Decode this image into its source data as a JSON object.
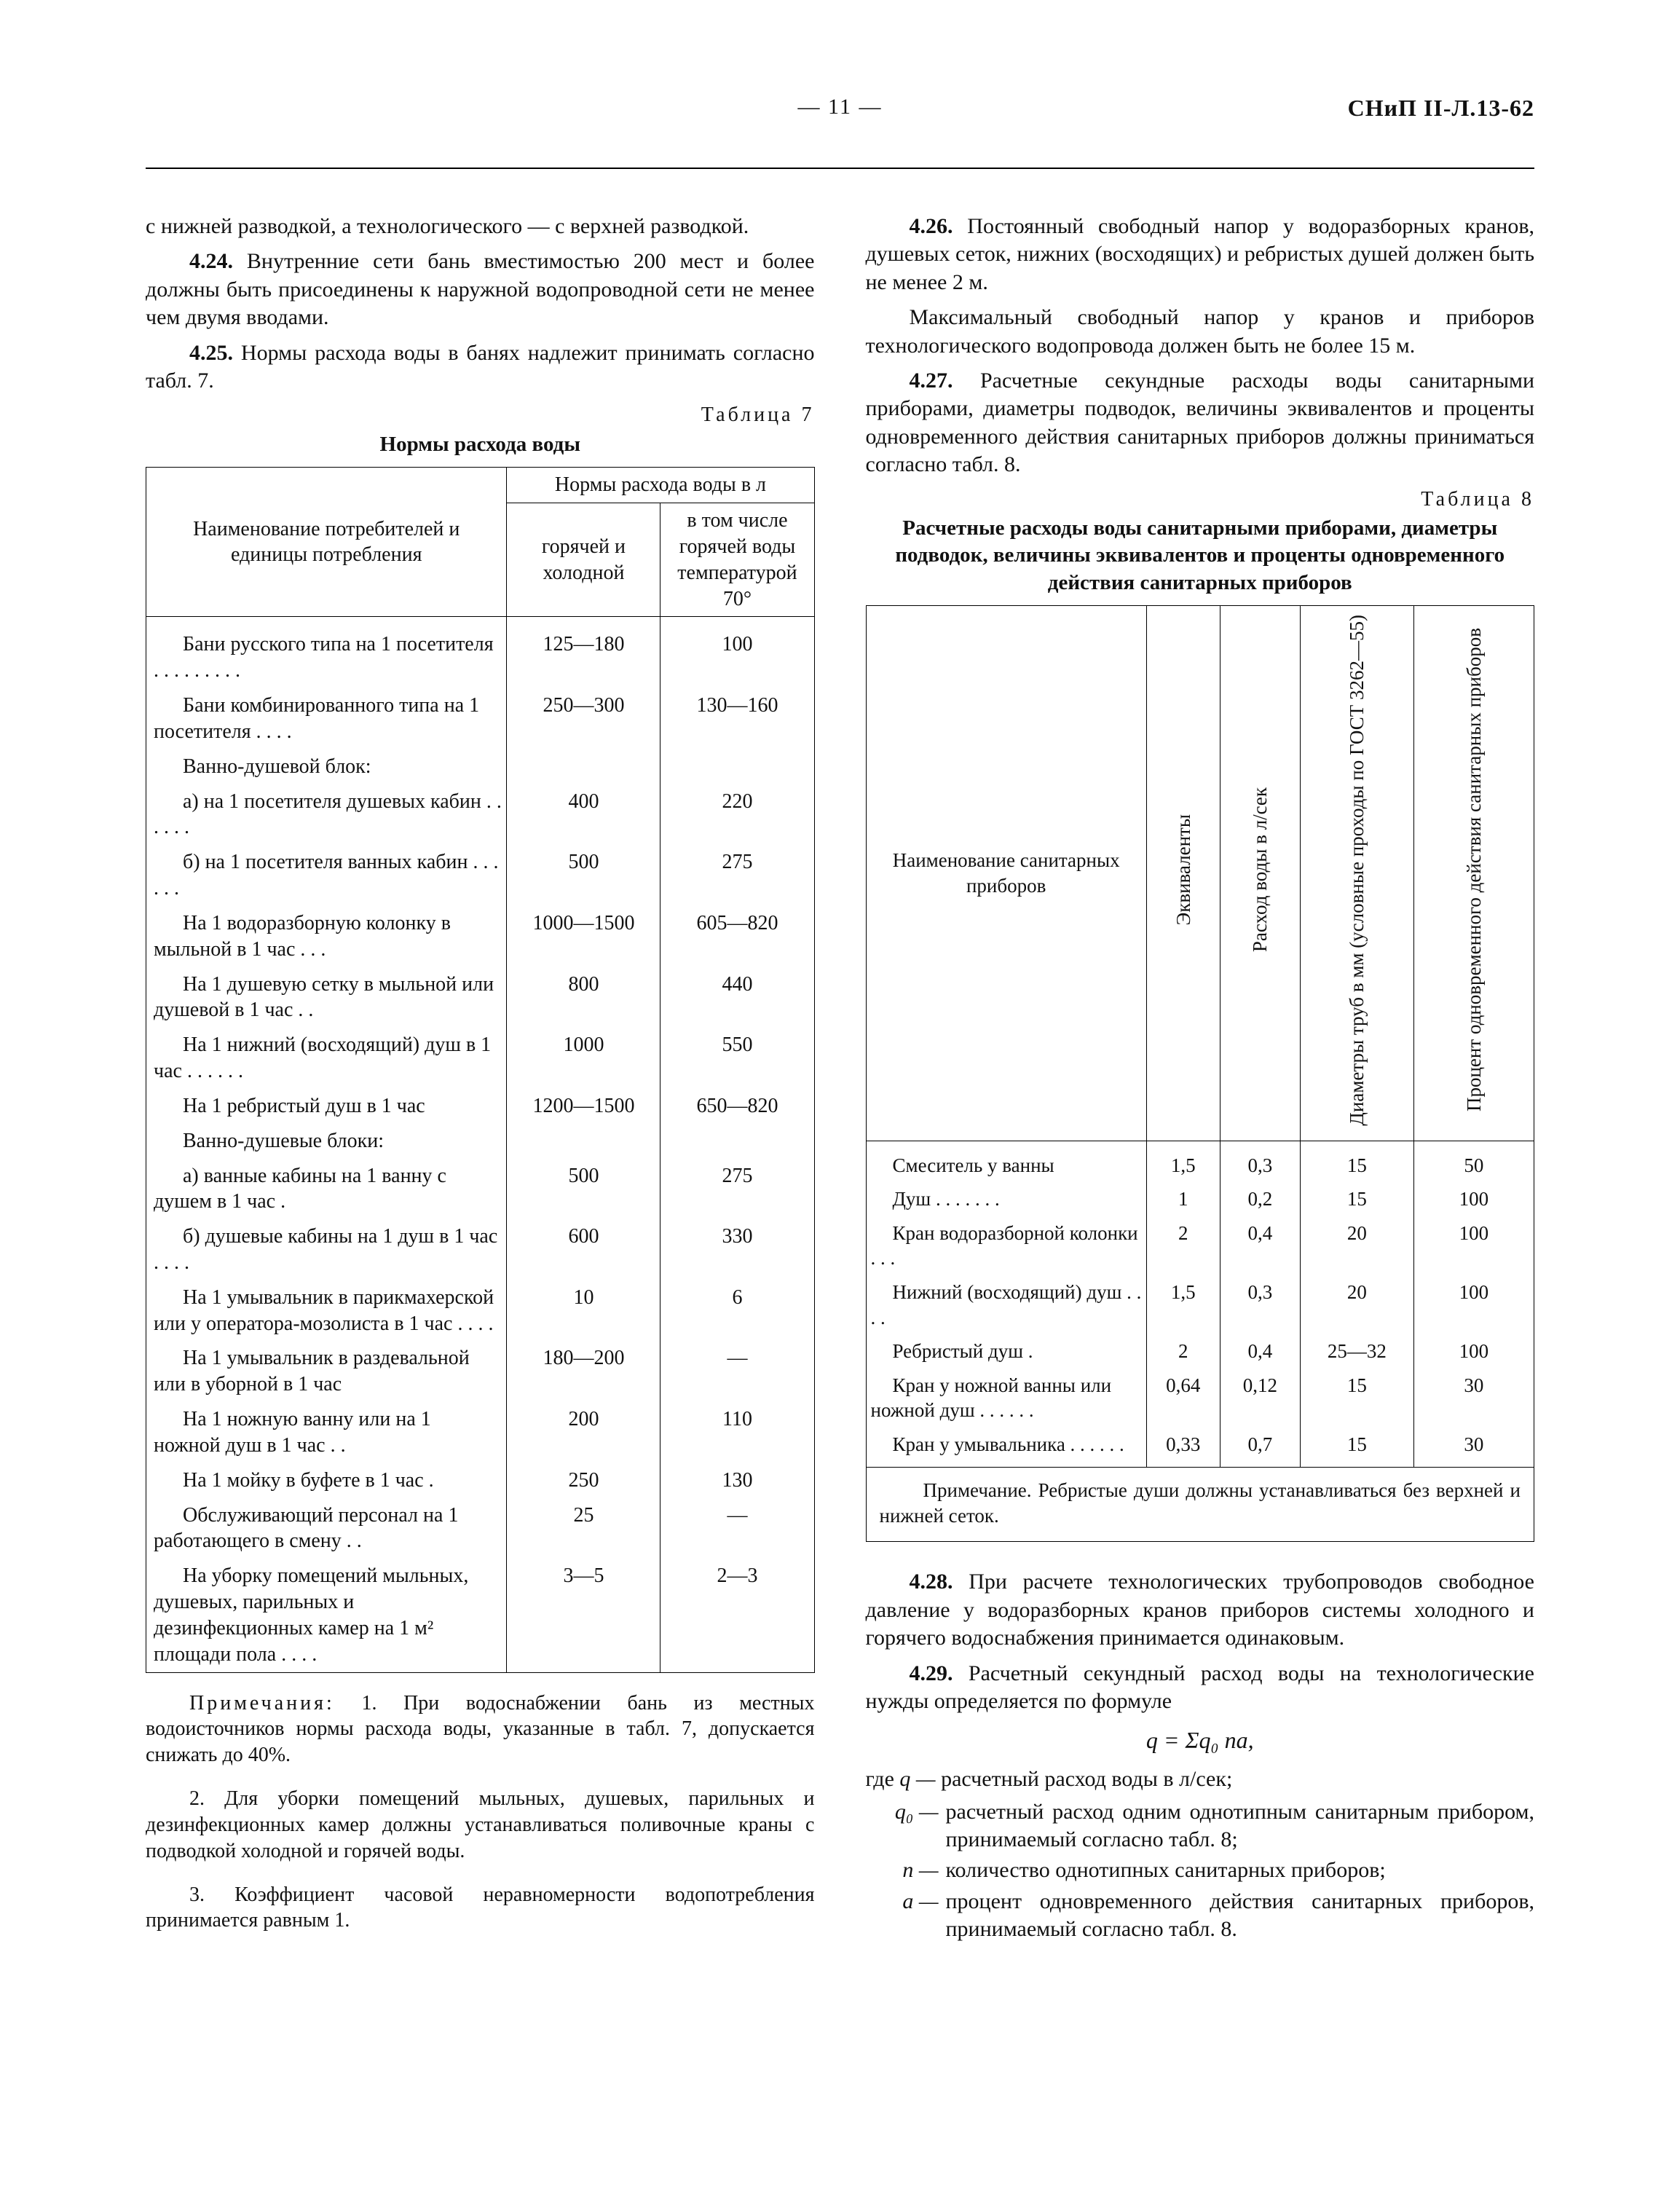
{
  "header": {
    "center": "— 11 —",
    "right": "СНиП II-Л.13-62"
  },
  "left": {
    "lead": "с нижней разводкой, а технологического — с верхней разводкой.",
    "p424": {
      "num": "4.24.",
      "text": "Внутренние сети бань вместимостью 200 мест и более должны быть присоединены к наружной водопроводной сети не менее чем двумя вводами."
    },
    "p425": {
      "num": "4.25.",
      "text": "Нормы расхода воды в банях надлежит принимать согласно табл. 7."
    },
    "t7": {
      "label": "Таблица 7",
      "title": "Нормы расхода воды",
      "head": {
        "name": "Наименование потребителей и единицы потребления",
        "group": "Нормы расхода воды в л",
        "c1": "горячей и холодной",
        "c2": "в том числе горячей воды температурой 70°"
      },
      "rows": [
        {
          "n": "Бани русского типа на 1 посетителя . . . . . . . . .",
          "a": "125—180",
          "b": "100"
        },
        {
          "n": "Бани комбинированного типа на 1 посетителя . . . .",
          "a": "250—300",
          "b": "130—160"
        },
        {
          "sect": "Ванно-душевой блок:"
        },
        {
          "n": "а) на 1 посетителя душевых кабин . . . . . .",
          "a": "400",
          "b": "220"
        },
        {
          "n": "б) на 1 посетителя ванных кабин . . . . . .",
          "a": "500",
          "b": "275"
        },
        {
          "n": "На 1 водоразборную колонку в мыльной в 1 час . . .",
          "a": "1000—1500",
          "b": "605—820"
        },
        {
          "n": "На 1 душевую сетку в мыльной или душевой в 1 час . .",
          "a": "800",
          "b": "440"
        },
        {
          "n": "На 1 нижний (восходящий) душ в 1 час . . . . . .",
          "a": "1000",
          "b": "550"
        },
        {
          "n": "На 1 ребристый душ в 1 час",
          "a": "1200—1500",
          "b": "650—820"
        },
        {
          "sect": "Ванно-душевые блоки:"
        },
        {
          "n": "а) ванные кабины на 1 ванну с душем в 1 час .",
          "a": "500",
          "b": "275"
        },
        {
          "n": "б) душевые кабины на 1 душ в 1 час . . . .",
          "a": "600",
          "b": "330"
        },
        {
          "n": "На 1 умывальник в парикмахерской или у оператора-мозолиста в 1 час . . . .",
          "a": "10",
          "b": "6"
        },
        {
          "n": "На 1 умывальник в раздевальной или в уборной в 1 час",
          "a": "180—200",
          "b": "—"
        },
        {
          "n": "На 1 ножную ванну или на 1 ножной душ в 1 час . .",
          "a": "200",
          "b": "110"
        },
        {
          "n": "На 1 мойку в буфете в 1 час .",
          "a": "250",
          "b": "130"
        },
        {
          "n": "Обслуживающий персонал на 1 работающего в смену . .",
          "a": "25",
          "b": "—"
        },
        {
          "n": "На уборку помещений мыльных, душевых, парильных и дезинфекционных камер на 1 м² площади пола . . . .",
          "a": "3—5",
          "b": "2—3"
        }
      ],
      "notes_lead": "Примечания:",
      "notes": [
        "1. При водоснабжении бань из местных водоисточников нормы расхода воды, указанные в табл. 7, допускается снижать до 40%.",
        "2. Для уборки помещений мыльных, душевых, парильных и дезинфекционных камер должны устанавливаться поливочные краны с подводкой холодной и горячей воды.",
        "3. Коэффициент часовой неравномерности водопотребления принимается равным 1."
      ]
    }
  },
  "right": {
    "p426": {
      "num": "4.26.",
      "text": "Постоянный свободный напор у водоразборных кранов, душевых сеток, нижних (восходящих) и ребристых душей должен быть не менее 2 м."
    },
    "p426b": "Максимальный свободный напор у кранов и приборов технологического водопровода должен быть не более 15 м.",
    "p427": {
      "num": "4.27.",
      "text": "Расчетные секундные расходы воды санитарными приборами, диаметры подводок, величины эквивалентов и проценты одновременного действия санитарных приборов должны приниматься согласно табл. 8."
    },
    "t8": {
      "label": "Таблица 8",
      "title": "Расчетные расходы воды санитарными приборами, диаметры подводок, величины эквивалентов и проценты одновременного действия санитарных приборов",
      "head": {
        "name": "Наименование санитарных приборов",
        "c1": "Эквиваленты",
        "c2": "Расход воды в л/сек",
        "c3": "Диаметры труб в мм (условные проходы по ГОСТ 3262—55)",
        "c4": "Процент одновременного действия санитарных приборов"
      },
      "rows": [
        {
          "n": "Смеситель у ванны",
          "a": "1,5",
          "b": "0,3",
          "c": "15",
          "d": "50"
        },
        {
          "n": "Душ . . . . . . .",
          "a": "1",
          "b": "0,2",
          "c": "15",
          "d": "100"
        },
        {
          "n": "Кран водоразборной колонки . . .",
          "a": "2",
          "b": "0,4",
          "c": "20",
          "d": "100"
        },
        {
          "n": "Нижний (восходящий) душ . . . .",
          "a": "1,5",
          "b": "0,3",
          "c": "20",
          "d": "100"
        },
        {
          "n": "Ребристый душ .",
          "a": "2",
          "b": "0,4",
          "c": "25—32",
          "d": "100"
        },
        {
          "n": "Кран у ножной ванны или ножной душ . . . . . .",
          "a": "0,64",
          "b": "0,12",
          "c": "15",
          "d": "30"
        },
        {
          "n": "Кран у умывальника . . . . . .",
          "a": "0,33",
          "b": "0,7",
          "c": "15",
          "d": "30"
        }
      ],
      "note": "Примечание. Ребристые души должны устанавливаться без верхней и нижней сеток."
    },
    "p428": {
      "num": "4.28.",
      "text": "При расчете технологических трубопроводов свободное давление у водоразборных кранов приборов системы холодного и горячего водоснабжения принимается одинаковым."
    },
    "p429": {
      "num": "4.29.",
      "text": "Расчетный секундный расход воды на технологические нужды определяется по формуле"
    },
    "formula": "q = Σq₀ na,",
    "where_lead": "где ",
    "defs": [
      {
        "s": "q —",
        "t": "расчетный расход воды в л/сек;"
      },
      {
        "s": "q₀ —",
        "t": "расчетный расход одним однотипным санитарным прибором, принимаемый согласно табл. 8;"
      },
      {
        "s": "n —",
        "t": "количество однотипных санитарных приборов;"
      },
      {
        "s": "a —",
        "t": "процент одновременного действия санитарных приборов, принимаемый согласно табл. 8."
      }
    ]
  }
}
